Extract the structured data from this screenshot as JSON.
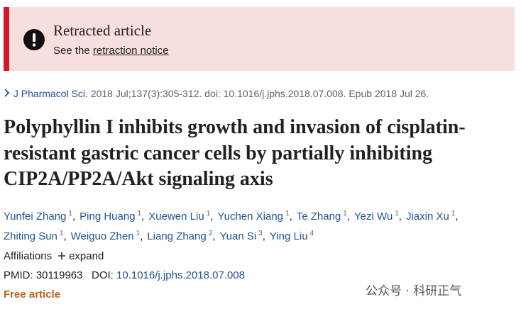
{
  "banner": {
    "title": "Retracted article",
    "prefix": "See the",
    "link": "retraction notice"
  },
  "citation": {
    "journal": "J Pharmacol Sci.",
    "details": "2018 Jul;137(3):305-312. doi: 10.1016/j.jphs.2018.07.008. Epub 2018 Jul 26."
  },
  "title": "Polyphyllin I inhibits growth and invasion of cisplatin-resistant gastric cancer cells by partially inhibiting CIP2A/PP2A/Akt signaling axis",
  "authors": [
    {
      "name": "Yunfei Zhang",
      "affiliation": "1"
    },
    {
      "name": "Ping Huang",
      "affiliation": "1"
    },
    {
      "name": "Xuewen Liu",
      "affiliation": "1"
    },
    {
      "name": "Yuchen Xiang",
      "affiliation": "1"
    },
    {
      "name": "Te Zhang",
      "affiliation": "1"
    },
    {
      "name": "Yezi Wu",
      "affiliation": "1"
    },
    {
      "name": "Jiaxin Xu",
      "affiliation": "1"
    },
    {
      "name": "Zhiting Sun",
      "affiliation": "1"
    },
    {
      "name": "Weiguo Zhen",
      "affiliation": "1"
    },
    {
      "name": "Liang Zhang",
      "affiliation": "2"
    },
    {
      "name": "Yuan Si",
      "affiliation": "3"
    },
    {
      "name": "Ying Liu",
      "affiliation": "4"
    }
  ],
  "affiliations": {
    "label": "Affiliations",
    "expand": "expand"
  },
  "ids": {
    "pmid_label": "PMID:",
    "pmid": "30119963",
    "doi_label": "DOI:",
    "doi": "10.1016/j.jphs.2018.07.008"
  },
  "free": "Free article",
  "watermark": "公众号 · 科研正气"
}
